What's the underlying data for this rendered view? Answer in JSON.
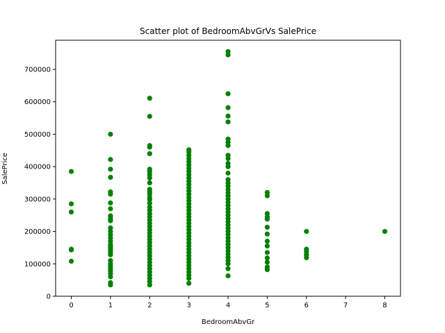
{
  "chart_data": {
    "type": "scatter",
    "title": "Scatter plot of BedroomAbvGrVs SalePrice",
    "xlabel": "BedroomAbvGr",
    "ylabel": "SalePrice",
    "xlim": [
      -0.4,
      8.4
    ],
    "ylim": [
      0,
      790000
    ],
    "xticks": [
      0,
      1,
      2,
      3,
      4,
      5,
      6,
      7,
      8
    ],
    "yticks": [
      0,
      100000,
      200000,
      300000,
      400000,
      500000,
      600000,
      700000
    ],
    "marker_color": "#008000",
    "grid": false,
    "series": [
      {
        "name": "SalePrice",
        "points": [
          [
            0,
            385000
          ],
          [
            0,
            285000
          ],
          [
            0,
            260000
          ],
          [
            0,
            145000
          ],
          [
            0,
            143000
          ],
          [
            0,
            108000
          ],
          [
            1,
            500000
          ],
          [
            1,
            422000
          ],
          [
            1,
            392000
          ],
          [
            1,
            367000
          ],
          [
            1,
            322000
          ],
          [
            1,
            315000
          ],
          [
            1,
            288000
          ],
          [
            1,
            270000
          ],
          [
            1,
            248000
          ],
          [
            1,
            240000
          ],
          [
            1,
            233000
          ],
          [
            1,
            211000
          ],
          [
            1,
            200000
          ],
          [
            1,
            190000
          ],
          [
            1,
            180000
          ],
          [
            1,
            170000
          ],
          [
            1,
            160000
          ],
          [
            1,
            155000
          ],
          [
            1,
            150000
          ],
          [
            1,
            145000
          ],
          [
            1,
            140000
          ],
          [
            1,
            135000
          ],
          [
            1,
            128000
          ],
          [
            1,
            110000
          ],
          [
            1,
            100000
          ],
          [
            1,
            93000
          ],
          [
            1,
            85000
          ],
          [
            1,
            78000
          ],
          [
            1,
            70000
          ],
          [
            1,
            60000
          ],
          [
            1,
            42000
          ],
          [
            1,
            35000
          ],
          [
            2,
            611000
          ],
          [
            2,
            555000
          ],
          [
            2,
            465000
          ],
          [
            2,
            460000
          ],
          [
            2,
            440000
          ],
          [
            2,
            392000
          ],
          [
            2,
            385000
          ],
          [
            2,
            375000
          ],
          [
            2,
            365000
          ],
          [
            2,
            350000
          ],
          [
            2,
            330000
          ],
          [
            2,
            322000
          ],
          [
            2,
            315000
          ],
          [
            2,
            305000
          ],
          [
            2,
            298000
          ],
          [
            2,
            287000
          ],
          [
            2,
            275000
          ],
          [
            2,
            265000
          ],
          [
            2,
            255000
          ],
          [
            2,
            245000
          ],
          [
            2,
            235000
          ],
          [
            2,
            225000
          ],
          [
            2,
            215000
          ],
          [
            2,
            205000
          ],
          [
            2,
            195000
          ],
          [
            2,
            185000
          ],
          [
            2,
            175000
          ],
          [
            2,
            165000
          ],
          [
            2,
            155000
          ],
          [
            2,
            145000
          ],
          [
            2,
            135000
          ],
          [
            2,
            125000
          ],
          [
            2,
            115000
          ],
          [
            2,
            105000
          ],
          [
            2,
            95000
          ],
          [
            2,
            85000
          ],
          [
            2,
            75000
          ],
          [
            2,
            65000
          ],
          [
            2,
            55000
          ],
          [
            2,
            45000
          ],
          [
            2,
            35000
          ],
          [
            3,
            452000
          ],
          [
            3,
            445000
          ],
          [
            3,
            435000
          ],
          [
            3,
            425000
          ],
          [
            3,
            415000
          ],
          [
            3,
            405000
          ],
          [
            3,
            395000
          ],
          [
            3,
            385000
          ],
          [
            3,
            375000
          ],
          [
            3,
            365000
          ],
          [
            3,
            355000
          ],
          [
            3,
            345000
          ],
          [
            3,
            335000
          ],
          [
            3,
            325000
          ],
          [
            3,
            315000
          ],
          [
            3,
            305000
          ],
          [
            3,
            295000
          ],
          [
            3,
            285000
          ],
          [
            3,
            275000
          ],
          [
            3,
            265000
          ],
          [
            3,
            255000
          ],
          [
            3,
            245000
          ],
          [
            3,
            235000
          ],
          [
            3,
            225000
          ],
          [
            3,
            215000
          ],
          [
            3,
            205000
          ],
          [
            3,
            195000
          ],
          [
            3,
            185000
          ],
          [
            3,
            175000
          ],
          [
            3,
            165000
          ],
          [
            3,
            155000
          ],
          [
            3,
            145000
          ],
          [
            3,
            135000
          ],
          [
            3,
            125000
          ],
          [
            3,
            115000
          ],
          [
            3,
            105000
          ],
          [
            3,
            95000
          ],
          [
            3,
            85000
          ],
          [
            3,
            75000
          ],
          [
            3,
            65000
          ],
          [
            3,
            55000
          ],
          [
            3,
            40000
          ],
          [
            4,
            755000
          ],
          [
            4,
            745000
          ],
          [
            4,
            625000
          ],
          [
            4,
            582000
          ],
          [
            4,
            556000
          ],
          [
            4,
            538000
          ],
          [
            4,
            485000
          ],
          [
            4,
            475000
          ],
          [
            4,
            465000
          ],
          [
            4,
            435000
          ],
          [
            4,
            425000
          ],
          [
            4,
            410000
          ],
          [
            4,
            400000
          ],
          [
            4,
            380000
          ],
          [
            4,
            360000
          ],
          [
            4,
            350000
          ],
          [
            4,
            340000
          ],
          [
            4,
            330000
          ],
          [
            4,
            320000
          ],
          [
            4,
            310000
          ],
          [
            4,
            300000
          ],
          [
            4,
            290000
          ],
          [
            4,
            280000
          ],
          [
            4,
            270000
          ],
          [
            4,
            260000
          ],
          [
            4,
            250000
          ],
          [
            4,
            240000
          ],
          [
            4,
            230000
          ],
          [
            4,
            220000
          ],
          [
            4,
            210000
          ],
          [
            4,
            200000
          ],
          [
            4,
            190000
          ],
          [
            4,
            180000
          ],
          [
            4,
            170000
          ],
          [
            4,
            160000
          ],
          [
            4,
            150000
          ],
          [
            4,
            140000
          ],
          [
            4,
            130000
          ],
          [
            4,
            120000
          ],
          [
            4,
            110000
          ],
          [
            4,
            100000
          ],
          [
            4,
            85000
          ],
          [
            4,
            63000
          ],
          [
            5,
            320000
          ],
          [
            5,
            310000
          ],
          [
            5,
            255000
          ],
          [
            5,
            245000
          ],
          [
            5,
            238000
          ],
          [
            5,
            213000
          ],
          [
            5,
            192000
          ],
          [
            5,
            170000
          ],
          [
            5,
            155000
          ],
          [
            5,
            135000
          ],
          [
            5,
            118000
          ],
          [
            5,
            105000
          ],
          [
            5,
            90000
          ],
          [
            5,
            82000
          ],
          [
            6,
            200000
          ],
          [
            6,
            145000
          ],
          [
            6,
            138000
          ],
          [
            6,
            128000
          ],
          [
            6,
            119000
          ],
          [
            8,
            200000
          ]
        ]
      }
    ]
  }
}
